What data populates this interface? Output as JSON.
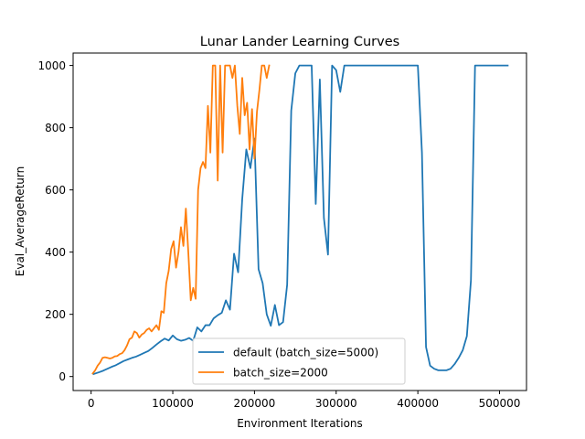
{
  "chart_data": {
    "type": "line",
    "title": "Lunar Lander Learning Curves",
    "xlabel": "Environment Iterations",
    "ylabel": "Eval_AverageReturn",
    "xlim": [
      -22000,
      533000
    ],
    "ylim": [
      -45,
      1040
    ],
    "xticks": [
      0,
      100000,
      200000,
      300000,
      400000,
      500000
    ],
    "xtick_labels": [
      "0",
      "100000",
      "200000",
      "300000",
      "400000",
      "500000"
    ],
    "yticks": [
      0,
      200,
      400,
      600,
      800,
      1000
    ],
    "ytick_labels": [
      "0",
      "200",
      "400",
      "600",
      "800",
      "1000"
    ],
    "grid": false,
    "legend_placement": "lower-center",
    "series": [
      {
        "name": "default (batch_size=5000)",
        "color": "#1f77b4",
        "x": [
          3000,
          10000,
          15000,
          20000,
          25000,
          30000,
          35000,
          40000,
          45000,
          50000,
          55000,
          60000,
          65000,
          70000,
          75000,
          80000,
          85000,
          90000,
          95000,
          100000,
          105000,
          110000,
          115000,
          120000,
          125000,
          130000,
          135000,
          140000,
          145000,
          150000,
          155000,
          160000,
          165000,
          170000,
          175000,
          180000,
          185000,
          190000,
          195000,
          200000,
          205000,
          210000,
          215000,
          220000,
          225000,
          230000,
          235000,
          240000,
          245000,
          250000,
          255000,
          260000,
          265000,
          270000,
          275000,
          280000,
          285000,
          290000,
          295000,
          300000,
          305000,
          310000,
          315000,
          320000,
          330000,
          340000,
          350000,
          360000,
          370000,
          380000,
          390000,
          400000,
          405000,
          410000,
          415000,
          420000,
          425000,
          430000,
          435000,
          440000,
          445000,
          450000,
          455000,
          460000,
          465000,
          470000,
          480000,
          490000,
          500000,
          510000
        ],
        "y": [
          8,
          14,
          19,
          25,
          31,
          36,
          43,
          50,
          55,
          60,
          64,
          70,
          76,
          82,
          92,
          103,
          113,
          122,
          116,
          132,
          120,
          115,
          118,
          124,
          115,
          158,
          145,
          165,
          165,
          187,
          197,
          205,
          245,
          215,
          395,
          335,
          570,
          730,
          670,
          765,
          345,
          300,
          200,
          163,
          230,
          165,
          175,
          295,
          855,
          975,
          1000,
          1000,
          1000,
          1000,
          555,
          955,
          510,
          392,
          1000,
          985,
          915,
          1000,
          1000,
          1000,
          1000,
          1000,
          1000,
          1000,
          1000,
          1000,
          1000,
          1000,
          720,
          95,
          35,
          25,
          20,
          20,
          20,
          25,
          40,
          60,
          85,
          130,
          310,
          1000,
          1000,
          1000,
          1000,
          1000
        ]
      },
      {
        "name": "batch_size=2000",
        "color": "#ff7f0e",
        "x": [
          2000,
          5000,
          8000,
          11000,
          14000,
          17000,
          20000,
          23000,
          26000,
          29000,
          32000,
          35000,
          38000,
          41000,
          44000,
          47000,
          50000,
          53000,
          56000,
          59000,
          62000,
          65000,
          68000,
          71000,
          74000,
          77000,
          80000,
          83000,
          86000,
          89000,
          92000,
          95000,
          98000,
          101000,
          104000,
          107000,
          110000,
          113000,
          116000,
          119000,
          122000,
          125000,
          128000,
          131000,
          134000,
          137000,
          140000,
          143000,
          146000,
          149000,
          152000,
          155000,
          158000,
          161000,
          164000,
          167000,
          170000,
          173000,
          176000,
          179000,
          182000,
          185000,
          188000,
          191000,
          194000,
          197000,
          200000,
          203000,
          206000,
          209000,
          212000,
          215000,
          218000
        ],
        "y": [
          10,
          20,
          35,
          45,
          60,
          62,
          60,
          58,
          60,
          65,
          66,
          72,
          75,
          85,
          100,
          120,
          125,
          145,
          140,
          125,
          135,
          140,
          150,
          155,
          145,
          155,
          165,
          150,
          210,
          205,
          300,
          340,
          410,
          435,
          350,
          400,
          480,
          420,
          540,
          400,
          245,
          285,
          250,
          600,
          670,
          690,
          670,
          870,
          720,
          1000,
          1000,
          630,
          1000,
          720,
          1000,
          1000,
          1000,
          960,
          1000,
          870,
          780,
          960,
          840,
          880,
          730,
          860,
          700,
          850,
          920,
          1000,
          1000,
          960,
          1000
        ]
      }
    ]
  }
}
